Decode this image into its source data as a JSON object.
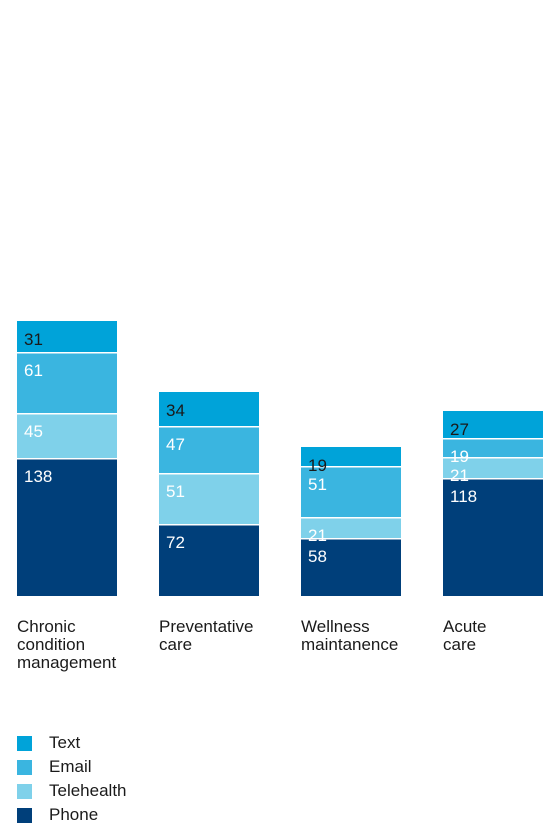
{
  "chart_data": {
    "type": "bar",
    "stacked": true,
    "categories": [
      "Chronic\ncondition\nmanagement",
      "Preventative\ncare",
      "Wellness\nmaintanence",
      "Acute\ncare"
    ],
    "series": [
      {
        "name": "Phone",
        "values": [
          138,
          72,
          58,
          118
        ],
        "color": "#003f7a",
        "label_color": "#ffffff"
      },
      {
        "name": "Telehealth",
        "values": [
          45,
          51,
          21,
          21
        ],
        "color": "#7fd1ea",
        "label_color": "#ffffff"
      },
      {
        "name": "Email",
        "values": [
          61,
          47,
          51,
          19
        ],
        "color": "#3ab5e0",
        "label_color": "#ffffff"
      },
      {
        "name": "Text",
        "values": [
          31,
          34,
          19,
          27
        ],
        "color": "#00a3d9",
        "label_color": "#1a1a1a"
      }
    ],
    "legend_order": [
      "Text",
      "Email",
      "Telehealth",
      "Phone"
    ],
    "legend_position": "bottom-left",
    "grid": false
  }
}
